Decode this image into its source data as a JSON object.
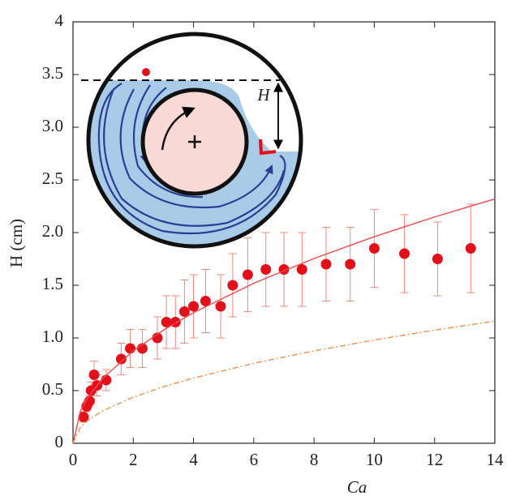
{
  "chart_data": {
    "type": "scatter",
    "x_label": "Ca",
    "y_label": "H (cm)",
    "annotations": [
      "H"
    ],
    "xlim": [
      0,
      14
    ],
    "ylim": [
      0,
      4
    ],
    "xticks": [
      0,
      2,
      4,
      6,
      8,
      10,
      12,
      14
    ],
    "yticks": [
      0,
      0.5,
      {
        "value": 1,
        "label": "1.0"
      },
      1.5,
      {
        "value": 2,
        "label": "2.0"
      },
      2.5,
      {
        "value": 3,
        "label": "3.0"
      },
      3.5,
      4
    ],
    "series": [
      {
        "type": "scatter",
        "color": "#e3101c",
        "error_color": "#f28a7a",
        "x": [
          0.35,
          0.45,
          0.55,
          0.6,
          0.7,
          0.8,
          1.1,
          1.6,
          1.9,
          2.3,
          2.8,
          3.1,
          3.4,
          3.7,
          4.0,
          4.4,
          4.9,
          5.3,
          5.8,
          6.4,
          7.0,
          7.6,
          8.4,
          9.2,
          10.0,
          11.0,
          12.1,
          13.2
        ],
        "values": [
          0.25,
          0.35,
          0.4,
          0.5,
          0.65,
          0.55,
          0.6,
          0.8,
          0.9,
          0.9,
          1.0,
          1.15,
          1.15,
          1.25,
          1.3,
          1.35,
          1.3,
          1.5,
          1.6,
          1.65,
          1.65,
          1.65,
          1.7,
          1.7,
          1.85,
          1.8,
          1.75,
          1.85
        ],
        "errors": [
          0.05,
          0.05,
          0.05,
          0.08,
          0.13,
          0.1,
          0.1,
          0.15,
          0.18,
          0.18,
          0.2,
          0.25,
          0.25,
          0.3,
          0.3,
          0.3,
          0.3,
          0.3,
          0.35,
          0.35,
          0.35,
          0.35,
          0.35,
          0.35,
          0.37,
          0.37,
          0.35,
          0.42
        ]
      },
      {
        "type": "line",
        "color": "#f04848",
        "dash": "solid",
        "x": [
          0,
          0.25,
          0.5,
          1,
          2,
          3,
          4,
          6,
          8,
          10,
          12,
          14
        ],
        "values": [
          0,
          0.31,
          0.438,
          0.62,
          0.877,
          1.074,
          1.24,
          1.519,
          1.754,
          1.961,
          2.148,
          2.32
        ]
      },
      {
        "type": "line",
        "color": "#f0904a",
        "dash": "dashdot",
        "x": [
          0,
          0.25,
          0.5,
          1,
          2,
          3,
          4,
          6,
          8,
          10,
          12,
          14
        ],
        "values": [
          0,
          0.155,
          0.219,
          0.31,
          0.438,
          0.537,
          0.62,
          0.759,
          0.877,
          0.98,
          1.074,
          1.16
        ]
      }
    ]
  }
}
